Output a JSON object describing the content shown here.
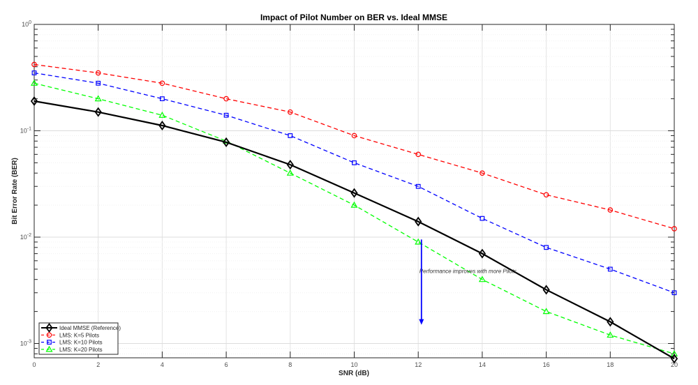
{
  "chart_data": {
    "type": "line",
    "title": "Impact of Pilot Number on BER vs. Ideal MMSE",
    "xlabel": "SNR (dB)",
    "ylabel": "Bit Error Rate (BER)",
    "xlim": [
      0,
      20
    ],
    "ylim": [
      0.00072,
      1
    ],
    "yscale": "log",
    "grid": true,
    "x": [
      0,
      2,
      4,
      6,
      8,
      10,
      12,
      14,
      16,
      18,
      20
    ],
    "x_ticks": [
      "0",
      "2",
      "4",
      "6",
      "8",
      "10",
      "12",
      "14",
      "16",
      "18",
      "20"
    ],
    "y_ticks": [
      {
        "base": "10",
        "exp": "0",
        "value": 1
      },
      {
        "base": "10",
        "exp": "-1",
        "value": 0.1
      },
      {
        "base": "10",
        "exp": "-2",
        "value": 0.01
      },
      {
        "base": "10",
        "exp": "-3",
        "value": 0.001
      }
    ],
    "series": [
      {
        "name": "Ideal MMSE (Reference)",
        "color": "#000000",
        "style": "solid",
        "marker": "diamond",
        "values": [
          0.19,
          0.15,
          0.112,
          0.078,
          0.048,
          0.026,
          0.014,
          0.007,
          0.0032,
          0.0016,
          0.00072
        ]
      },
      {
        "name": "LMS: K=5 Pilots",
        "color": "#ff0000",
        "style": "dashed",
        "marker": "circle",
        "values": [
          0.42,
          0.35,
          0.28,
          0.2,
          0.15,
          0.09,
          0.06,
          0.04,
          0.025,
          0.018,
          0.012
        ]
      },
      {
        "name": "LMS: K=10 Pilots",
        "color": "#0000ff",
        "style": "dashed",
        "marker": "square",
        "values": [
          0.35,
          0.28,
          0.2,
          0.14,
          0.09,
          0.05,
          0.03,
          0.015,
          0.008,
          0.005,
          0.003
        ]
      },
      {
        "name": "LMS: K=20 Pilots",
        "color": "#00ff00",
        "style": "dashed",
        "marker": "triangle",
        "values": [
          0.28,
          0.2,
          0.14,
          0.08,
          0.04,
          0.02,
          0.009,
          0.004,
          0.002,
          0.0012,
          0.0008
        ]
      }
    ],
    "legend_position": "lower left",
    "annotations": [
      {
        "text": "Performance improves with more Pilots",
        "x": 12.1,
        "y": 0.0048
      },
      {
        "type": "arrow",
        "color": "#0000ff",
        "x": 12.1,
        "y_start": 0.0095,
        "y_end": 0.0015
      }
    ]
  }
}
